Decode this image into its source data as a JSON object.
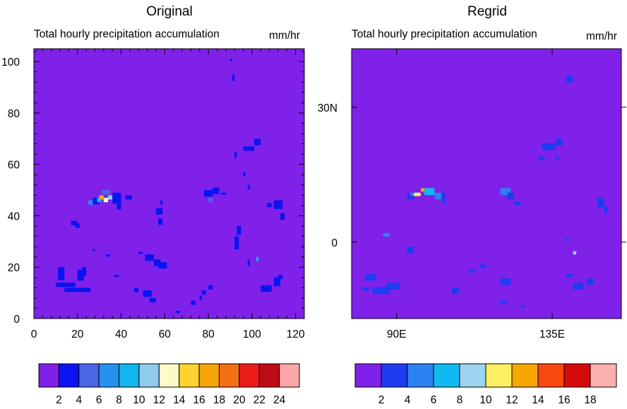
{
  "colors": {
    "background_field": "#8021ea",
    "original_scale": [
      "#8021ea",
      "#0a14f0",
      "#4a66e6",
      "#2391f0",
      "#10b6ef",
      "#8fcaef",
      "#fff9c8",
      "#fdd42f",
      "#f6a30a",
      "#f46e14",
      "#ec1b1c",
      "#be0d14",
      "#fca7a7"
    ],
    "regrid_scale": [
      "#8021ea",
      "#1e3cf0",
      "#2b82f0",
      "#12b8f0",
      "#9dd4f0",
      "#fff063",
      "#f7a600",
      "#f9480e",
      "#d60a0a",
      "#fdb0b0"
    ]
  },
  "chart_data": [
    {
      "type": "heatmap",
      "title": "Original",
      "subtitle_left": "Total hourly precipitation accumulation",
      "subtitle_right": "mm/hr",
      "xlim": [
        0,
        124
      ],
      "ylim": [
        0,
        105
      ],
      "x_ticks": [
        "0",
        "20",
        "40",
        "60",
        "80",
        "100",
        "120"
      ],
      "y_ticks": [
        "0",
        "20",
        "40",
        "60",
        "80",
        "100"
      ],
      "colorbar_levels": [
        "2",
        "4",
        "6",
        "8",
        "10",
        "12",
        "14",
        "16",
        "18",
        "20",
        "22",
        "24"
      ],
      "background_value": "< 2"
    },
    {
      "type": "heatmap",
      "title": "Regrid",
      "subtitle_left": "Total hourly precipitation accumulation",
      "subtitle_right": "mm/hr",
      "xlim": [
        77,
        155
      ],
      "ylim": [
        -17,
        43
      ],
      "x_ticks": [
        "90E",
        "135E"
      ],
      "y_ticks": [
        "0",
        "30N"
      ],
      "colorbar_levels": [
        "2",
        "4",
        "6",
        "8",
        "10",
        "12",
        "14",
        "16",
        "18"
      ],
      "background_value": "< 2"
    }
  ]
}
